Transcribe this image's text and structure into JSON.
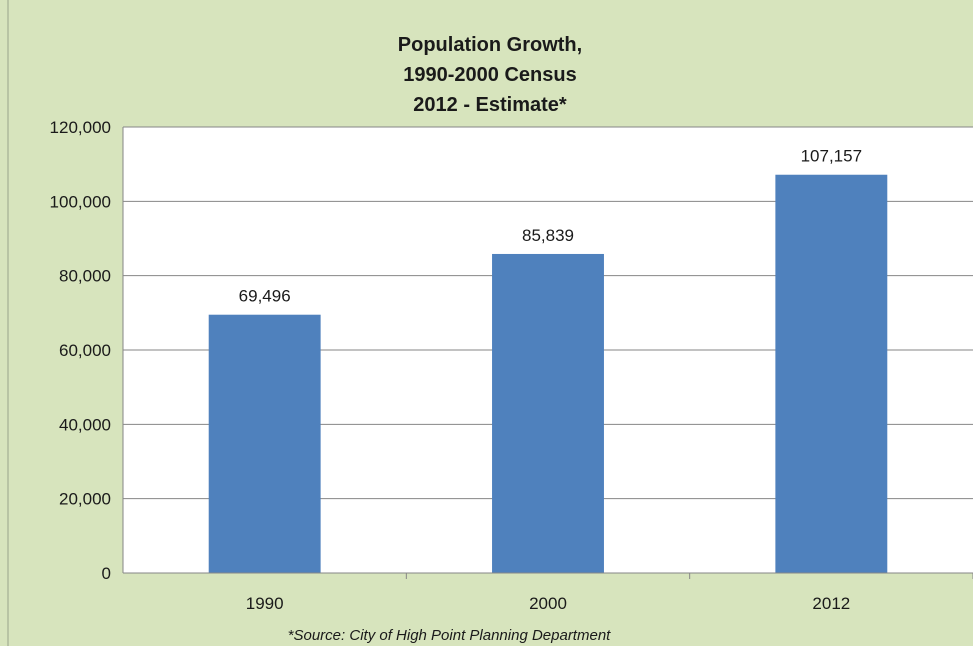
{
  "chart_data": {
    "type": "bar",
    "title_lines": [
      "Population Growth,",
      "1990-2000 Census",
      "2012 - Estimate*"
    ],
    "categories": [
      "1990",
      "2000",
      "2012"
    ],
    "values": [
      69496,
      85839,
      107157
    ],
    "data_labels": [
      "69,496",
      "85,839",
      "107,157"
    ],
    "y_ticks": [
      0,
      20000,
      40000,
      60000,
      80000,
      100000,
      120000
    ],
    "y_tick_labels": [
      "0",
      "20,000",
      "40,000",
      "60,000",
      "80,000",
      "100,000",
      "120,000"
    ],
    "ylim": [
      0,
      120000
    ],
    "grid": true,
    "legend": "none",
    "source_note": "*Source:  City of High Point Planning Department",
    "colors": {
      "bar": "#4f81bd",
      "background": "#d7e4bd",
      "plot_area": "#ffffff",
      "gridline": "#868686"
    }
  }
}
